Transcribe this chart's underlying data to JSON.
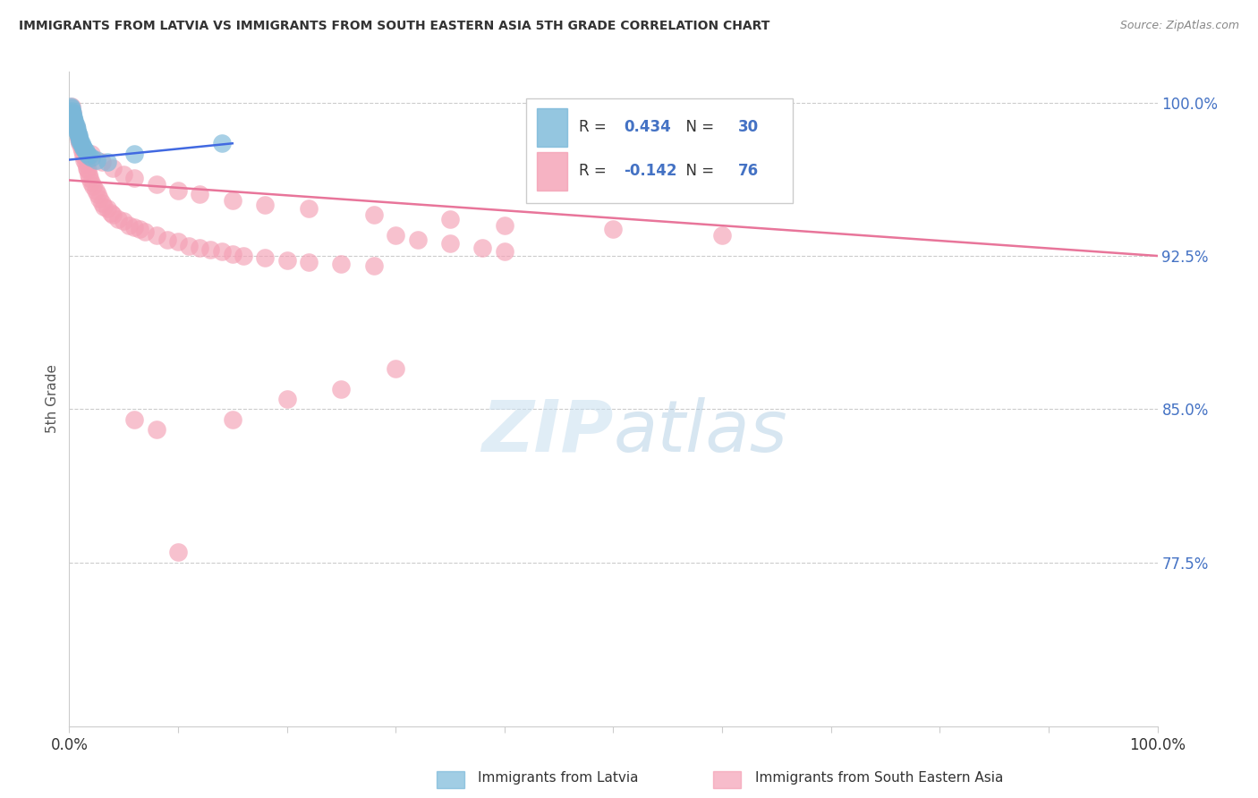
{
  "title": "IMMIGRANTS FROM LATVIA VS IMMIGRANTS FROM SOUTH EASTERN ASIA 5TH GRADE CORRELATION CHART",
  "source": "Source: ZipAtlas.com",
  "ylabel": "5th Grade",
  "xlim": [
    0.0,
    1.0
  ],
  "ylim": [
    0.695,
    1.015
  ],
  "yticks": [
    0.775,
    0.85,
    0.925,
    1.0
  ],
  "ytick_labels": [
    "77.5%",
    "85.0%",
    "92.5%",
    "100.0%"
  ],
  "latvia_color": "#7ab8d9",
  "sea_color": "#f4a0b5",
  "latvia_R": 0.434,
  "latvia_N": 30,
  "sea_R": -0.142,
  "sea_N": 76,
  "legend_label_latvia": "Immigrants from Latvia",
  "legend_label_sea": "Immigrants from South Eastern Asia",
  "latvia_x": [
    0.001,
    0.002,
    0.002,
    0.003,
    0.003,
    0.004,
    0.004,
    0.005,
    0.005,
    0.006,
    0.006,
    0.007,
    0.007,
    0.008,
    0.009,
    0.009,
    0.01,
    0.01,
    0.011,
    0.012,
    0.013,
    0.014,
    0.015,
    0.016,
    0.018,
    0.02,
    0.025,
    0.035,
    0.06,
    0.14
  ],
  "latvia_y": [
    0.998,
    0.997,
    0.996,
    0.995,
    0.994,
    0.993,
    0.992,
    0.991,
    0.99,
    0.989,
    0.988,
    0.987,
    0.986,
    0.985,
    0.984,
    0.983,
    0.982,
    0.981,
    0.98,
    0.979,
    0.978,
    0.977,
    0.976,
    0.975,
    0.974,
    0.973,
    0.972,
    0.971,
    0.975,
    0.98
  ],
  "sea_x": [
    0.002,
    0.003,
    0.004,
    0.005,
    0.006,
    0.007,
    0.008,
    0.009,
    0.01,
    0.011,
    0.012,
    0.013,
    0.014,
    0.015,
    0.016,
    0.017,
    0.018,
    0.019,
    0.02,
    0.022,
    0.024,
    0.026,
    0.028,
    0.03,
    0.032,
    0.035,
    0.038,
    0.04,
    0.045,
    0.05,
    0.055,
    0.06,
    0.065,
    0.07,
    0.08,
    0.09,
    0.1,
    0.11,
    0.12,
    0.13,
    0.14,
    0.15,
    0.16,
    0.18,
    0.2,
    0.22,
    0.25,
    0.28,
    0.3,
    0.32,
    0.35,
    0.38,
    0.4,
    0.02,
    0.03,
    0.04,
    0.05,
    0.06,
    0.08,
    0.1,
    0.12,
    0.15,
    0.18,
    0.22,
    0.28,
    0.35,
    0.4,
    0.5,
    0.6,
    0.3,
    0.25,
    0.2,
    0.15,
    0.1,
    0.08,
    0.06
  ],
  "sea_y": [
    0.998,
    0.995,
    0.992,
    0.99,
    0.988,
    0.986,
    0.984,
    0.982,
    0.98,
    0.978,
    0.976,
    0.974,
    0.972,
    0.97,
    0.968,
    0.967,
    0.965,
    0.963,
    0.961,
    0.959,
    0.957,
    0.955,
    0.953,
    0.951,
    0.949,
    0.948,
    0.946,
    0.945,
    0.943,
    0.942,
    0.94,
    0.939,
    0.938,
    0.937,
    0.935,
    0.933,
    0.932,
    0.93,
    0.929,
    0.928,
    0.927,
    0.926,
    0.925,
    0.924,
    0.923,
    0.922,
    0.921,
    0.92,
    0.935,
    0.933,
    0.931,
    0.929,
    0.927,
    0.975,
    0.971,
    0.968,
    0.965,
    0.963,
    0.96,
    0.957,
    0.955,
    0.952,
    0.95,
    0.948,
    0.945,
    0.943,
    0.94,
    0.938,
    0.935,
    0.87,
    0.86,
    0.855,
    0.845,
    0.78,
    0.84,
    0.845
  ],
  "sea_trend_x0": 0.0,
  "sea_trend_y0": 0.962,
  "sea_trend_x1": 1.0,
  "sea_trend_y1": 0.925,
  "latvia_trend_x0": 0.0,
  "latvia_trend_y0": 0.972,
  "latvia_trend_x1": 0.15,
  "latvia_trend_y1": 0.98
}
